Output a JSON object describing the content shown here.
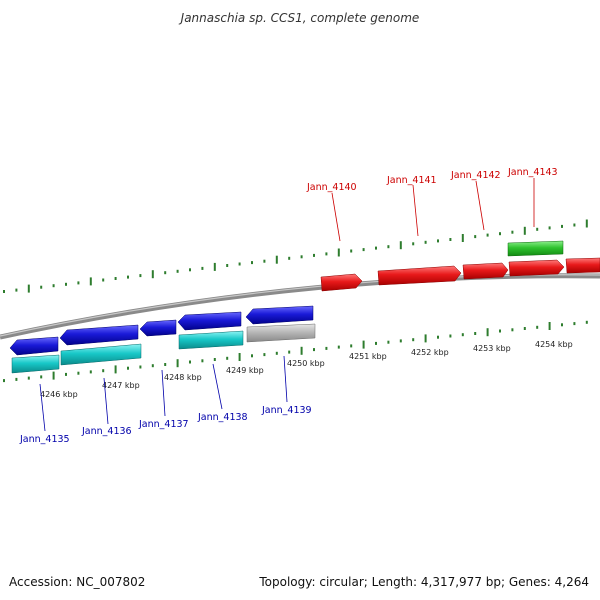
{
  "header": {
    "title": "Jannaschia sp. CCS1, complete genome"
  },
  "footer": {
    "accession": "Accession: NC_007802",
    "summary": "Topology: circular; Length: 4,317,977 bp; Genes: 4,264"
  },
  "colors": {
    "forward_gene": "#e8191a",
    "reverse_gene": "#1a1ad8",
    "forward_rna": "#2ec22e",
    "reverse_cds": "#18c8c8",
    "pseudo": "#b8b8b8",
    "backbone": "#8a8a8a",
    "ticks": "#2e7d2e",
    "forward_label": "#cc0000",
    "reverse_label": "#0000aa"
  },
  "scale_labels": [
    "4246 kbp",
    "4247 kbp",
    "4248 kbp",
    "4249 kbp",
    "4250 kbp",
    "4251 kbp",
    "4252 kbp",
    "4253 kbp",
    "4254 kbp"
  ],
  "forward_genes": [
    "Jann_4140",
    "Jann_4141",
    "Jann_4142",
    "Jann_4143"
  ],
  "reverse_genes": [
    "Jann_4135",
    "Jann_4136",
    "Jann_4137",
    "Jann_4138",
    "Jann_4139"
  ]
}
